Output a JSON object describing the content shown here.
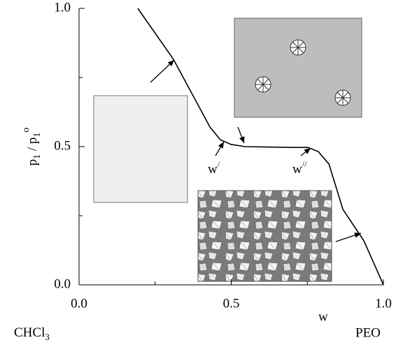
{
  "chart_data": {
    "type": "line",
    "x_label": "w",
    "y_label": {
      "parts": [
        "p",
        "1",
        " / p",
        "1",
        "o"
      ]
    },
    "left_end_label": {
      "base": "CHCl",
      "sub": "3"
    },
    "right_end_label": "PEO",
    "annotations": [
      {
        "base": "w",
        "mark": "/"
      },
      {
        "base": "w",
        "mark": "//"
      }
    ],
    "x": [
      0.193,
      0.31,
      0.43,
      0.464,
      0.499,
      0.545,
      0.706,
      0.752,
      0.786,
      0.821,
      0.867,
      0.936,
      1.0
    ],
    "series": [
      {
        "name": "p1/p1o",
        "color": "#000000",
        "values": [
          1.0,
          0.816,
          0.571,
          0.525,
          0.508,
          0.5,
          0.497,
          0.497,
          0.482,
          0.437,
          0.273,
          0.159,
          0.0
        ]
      }
    ],
    "xlim": [
      0,
      1
    ],
    "ylim": [
      0,
      1
    ],
    "xticks": [
      {
        "value": 0,
        "label": "0.0"
      },
      {
        "value": 0.5,
        "label": "0.5"
      },
      {
        "value": 1,
        "label": "1.0"
      }
    ],
    "yticks": [
      {
        "value": 0,
        "label": "0.0"
      },
      {
        "value": 0.5,
        "label": "0.5"
      },
      {
        "value": 1,
        "label": "1.0"
      }
    ],
    "x_minor_ticks": [
      0.25,
      0.75
    ],
    "y_minor_ticks": [
      0.25,
      0.75
    ],
    "grid": false
  }
}
